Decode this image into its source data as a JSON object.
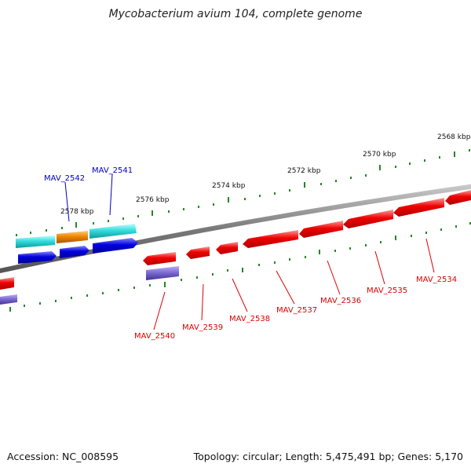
{
  "title": "Mycobacterium avium 104, complete genome",
  "footer": {
    "accession": "Accession: NC_008595",
    "summary": "Topology: circular; Length: 5,475,491 bp; Genes: 5,170"
  },
  "colors": {
    "backbone": "#808080",
    "tick": "#228822",
    "forward_gene": "#ee0000",
    "reverse_gene_blue": "#0000dd",
    "reverse_gene_cyan": "#33dddd",
    "reverse_gene_orange": "#ee8800",
    "purple_gene": "#7766cc",
    "label_red": "#dd0000",
    "label_blue": "#0000bb"
  },
  "ticks": [
    "2568 kbp",
    "2570 kbp",
    "2572 kbp",
    "2574 kbp",
    "2576 kbp",
    "2578 kbp"
  ],
  "genes_top": [
    "MAV_2542",
    "MAV_2541"
  ],
  "genes_bottom": [
    "MAV_2540",
    "MAV_2539",
    "MAV_2538",
    "MAV_2537",
    "MAV_2536",
    "MAV_2535",
    "MAV_2534"
  ]
}
